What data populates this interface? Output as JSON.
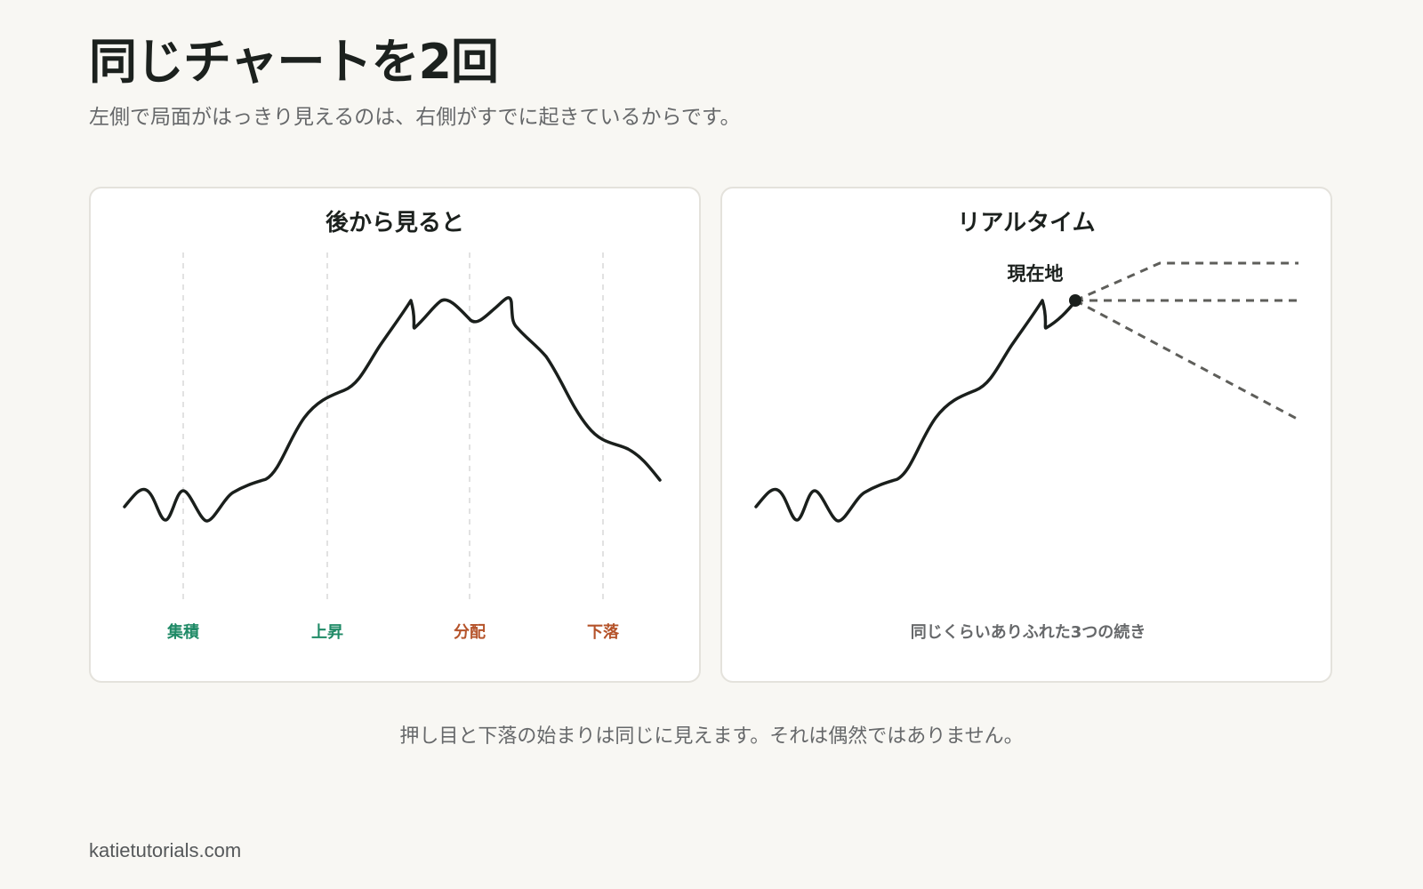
{
  "header": {
    "title": "同じチャートを2回",
    "subtitle": "左側で局面がはっきり見えるのは、右側がすでに起きているからです。"
  },
  "left_panel": {
    "title": "後から見ると",
    "phases": [
      {
        "label": "集積",
        "color": "#1f8a66"
      },
      {
        "label": "上昇",
        "color": "#1f8a66"
      },
      {
        "label": "分配",
        "color": "#b5532a"
      },
      {
        "label": "下落",
        "color": "#b5532a"
      }
    ]
  },
  "right_panel": {
    "title": "リアルタイム",
    "marker_label": "現在地",
    "caption": "同じくらいありふれた3つの続き"
  },
  "footer": {
    "note": "押し目と下落の始まりは同じに見えます。それは偶然ではありません。",
    "site": "katietutorials.com"
  },
  "colors": {
    "background": "#f8f7f3",
    "price_line": "#1a1f1c",
    "scenario_line": "#5e5e5a",
    "phase_divider": "#d9d9d9",
    "accumulation_markup": "#1f8a66",
    "distribution_markdown": "#b5532a"
  },
  "icons": {
    "current_position": "filled-circle-marker"
  }
}
